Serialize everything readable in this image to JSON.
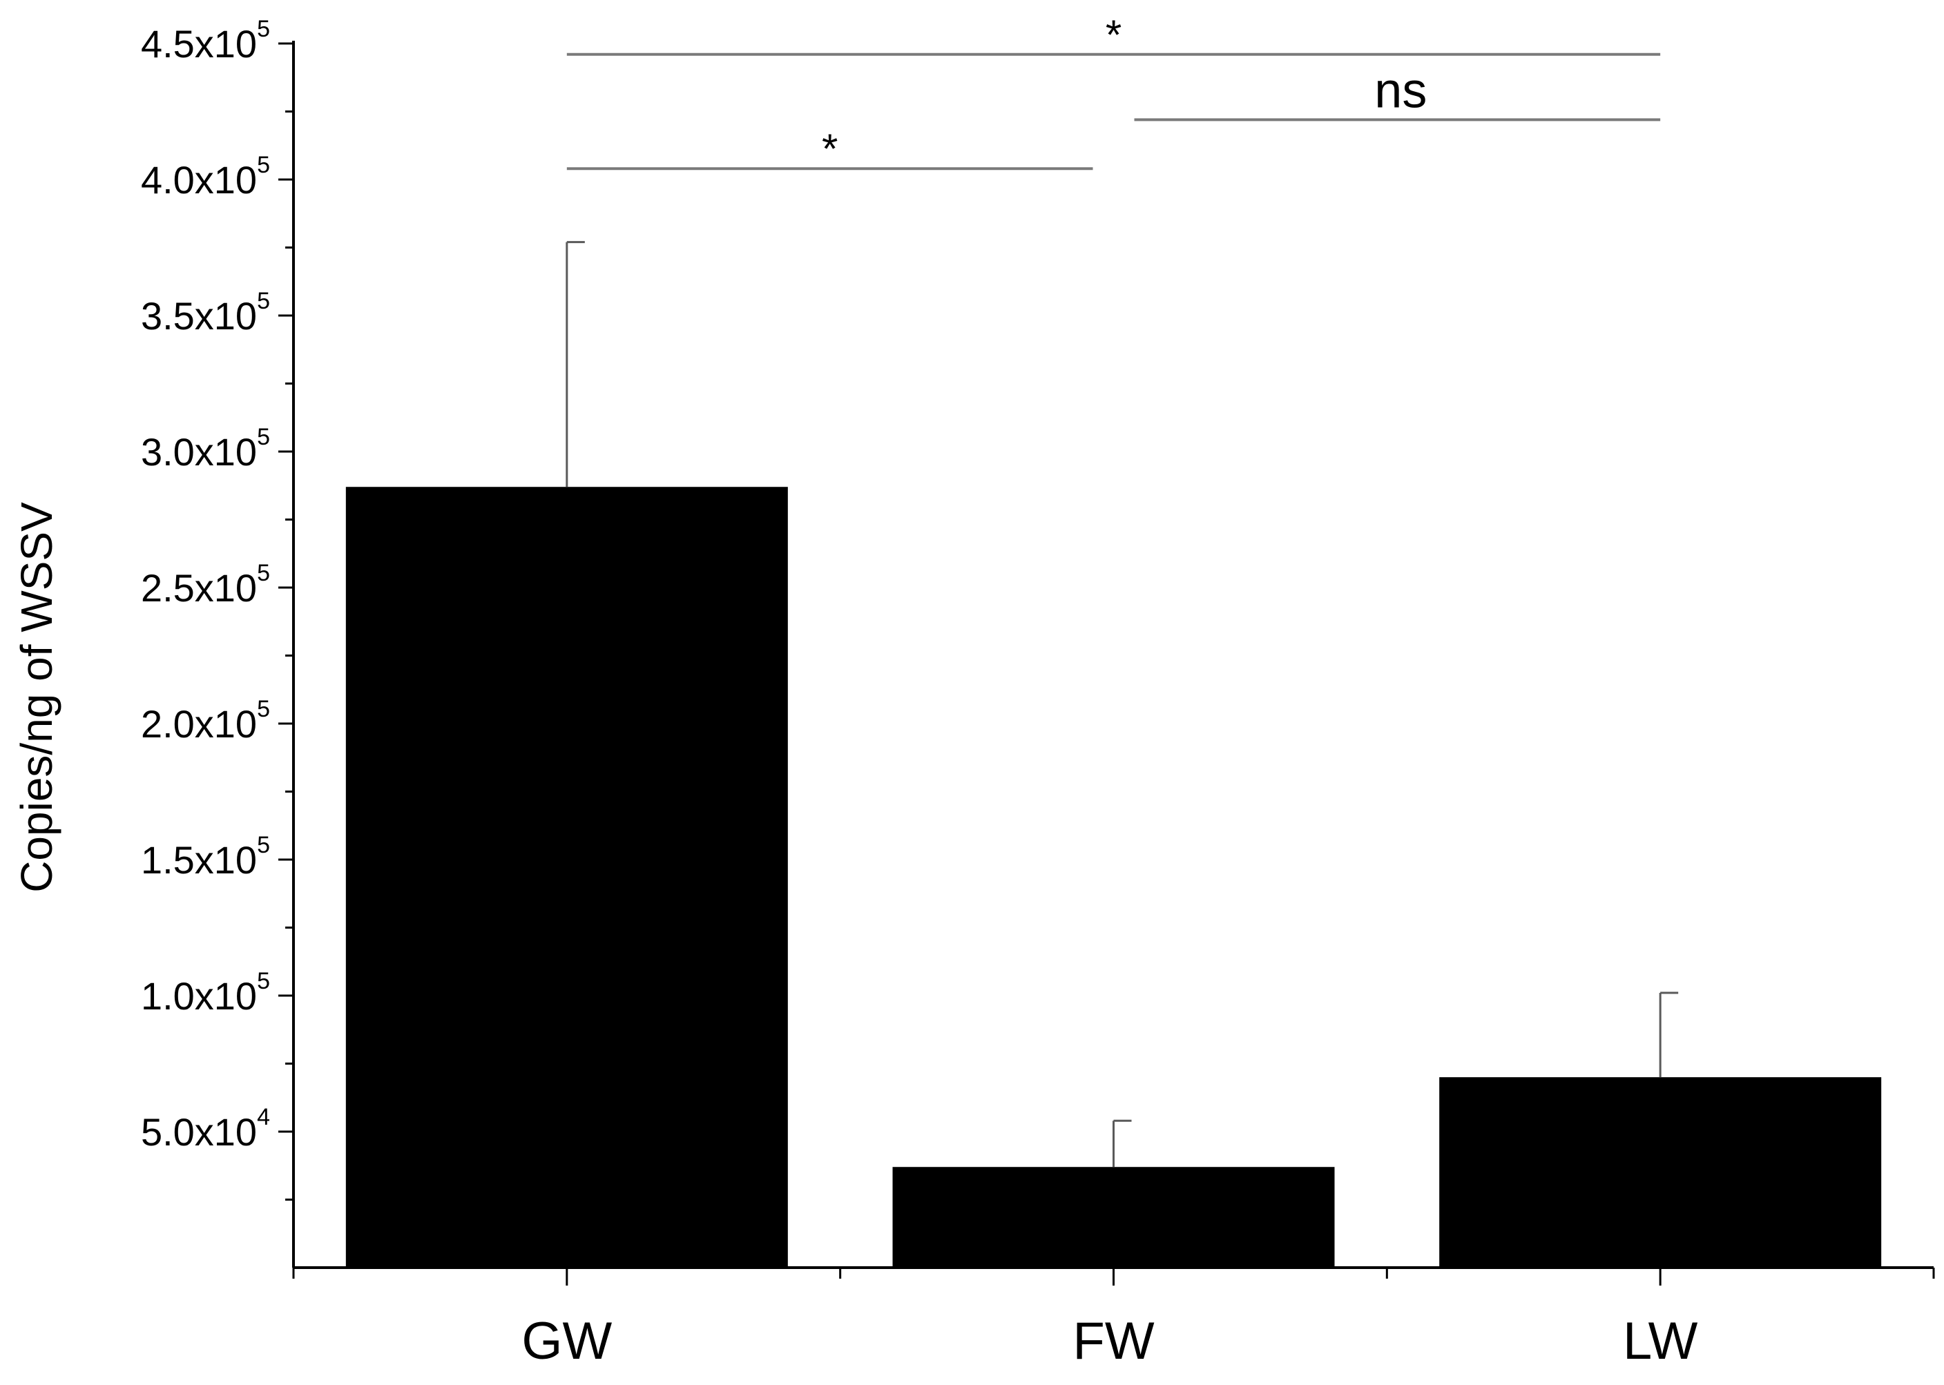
{
  "chart_data": {
    "type": "bar",
    "title": "",
    "xlabel": "",
    "ylabel": "Copies/ng of WSSV",
    "categories": [
      "GW",
      "FW",
      "LW"
    ],
    "values": [
      287000,
      37000,
      70000
    ],
    "error_bars": [
      90000,
      17000,
      31000
    ],
    "ylim": [
      0,
      450000
    ],
    "y_ticks": [
      {
        "value": 50000,
        "mantissa": "5.0x10",
        "exponent": "4"
      },
      {
        "value": 100000,
        "mantissa": "1.0x10",
        "exponent": "5"
      },
      {
        "value": 150000,
        "mantissa": "1.5x10",
        "exponent": "5"
      },
      {
        "value": 200000,
        "mantissa": "2.0x10",
        "exponent": "5"
      },
      {
        "value": 250000,
        "mantissa": "2.5x10",
        "exponent": "5"
      },
      {
        "value": 300000,
        "mantissa": "3.0x10",
        "exponent": "5"
      },
      {
        "value": 350000,
        "mantissa": "3.5x10",
        "exponent": "5"
      },
      {
        "value": 400000,
        "mantissa": "4.0x10",
        "exponent": "5"
      },
      {
        "value": 450000,
        "mantissa": "4.5x10",
        "exponent": "5"
      }
    ],
    "significance": [
      {
        "from": "GW",
        "to": "LW",
        "label": "*",
        "level": 446000
      },
      {
        "from": "FW",
        "to": "LW",
        "label": "ns",
        "level": 422000
      },
      {
        "from": "GW",
        "to": "FW",
        "label": "*",
        "level": 404000
      }
    ],
    "bar_color": "#000000",
    "grid": false,
    "legend": "none"
  }
}
